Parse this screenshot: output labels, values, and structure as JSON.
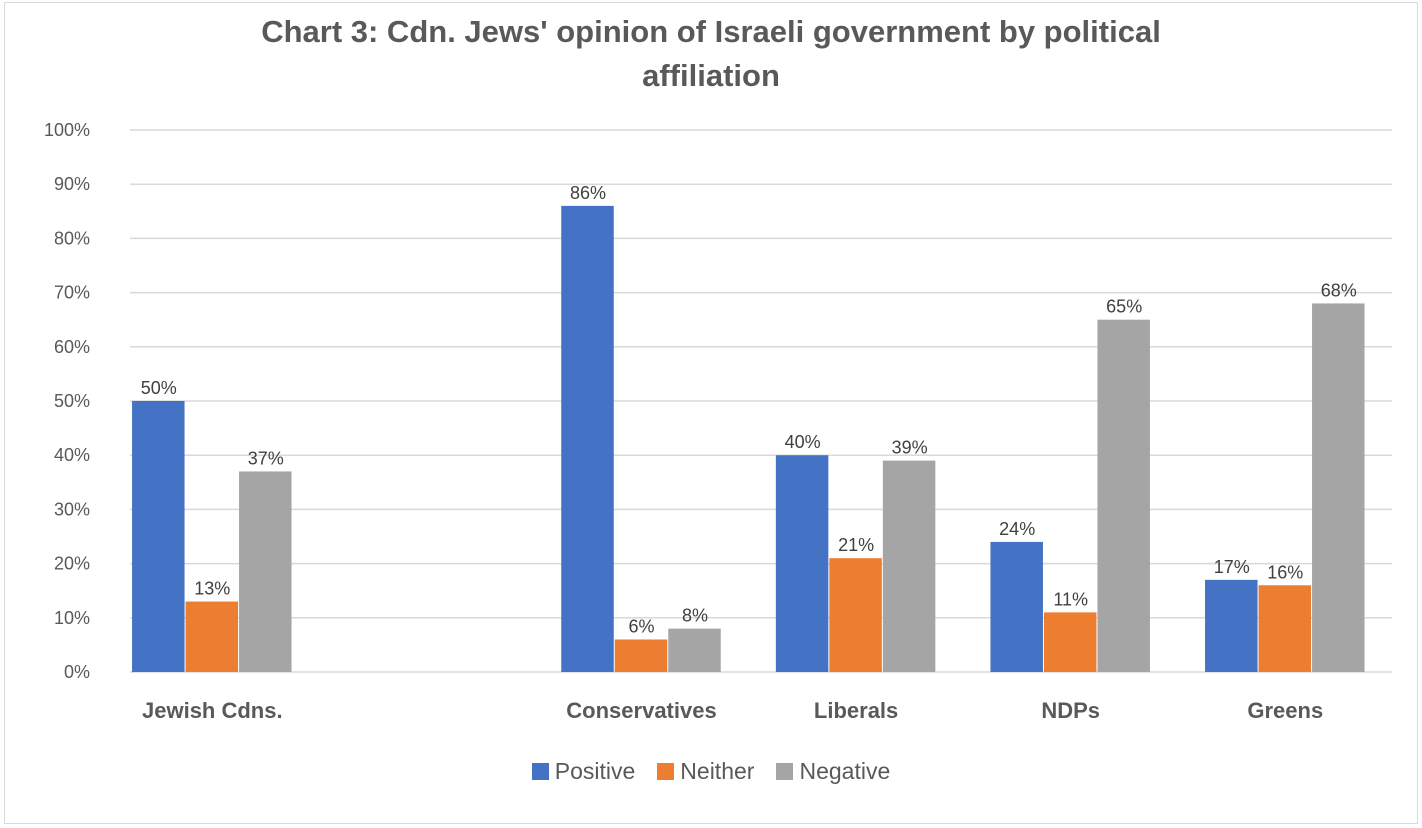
{
  "chart_data": {
    "type": "bar",
    "title": "Chart  3: Cdn. Jews' opinion of Israeli government by  political affiliation",
    "title_lines": [
      "Chart  3: Cdn. Jews' opinion of Israeli government by  political",
      "affiliation"
    ],
    "categories": [
      "Jewish Cdns.",
      "",
      "Conservatives",
      "Liberals",
      "NDPs",
      "Greens"
    ],
    "series": [
      {
        "name": "Positive",
        "color": "#4472c4",
        "values": [
          50,
          null,
          86,
          40,
          24,
          17
        ]
      },
      {
        "name": "Neither",
        "color": "#ed7d31",
        "values": [
          13,
          null,
          6,
          21,
          11,
          16
        ]
      },
      {
        "name": "Negative",
        "color": "#a5a5a5",
        "values": [
          37,
          null,
          8,
          39,
          65,
          68
        ]
      }
    ],
    "ylim": [
      0,
      100
    ],
    "yticks": [
      "0%",
      "10%",
      "20%",
      "30%",
      "40%",
      "50%",
      "60%",
      "70%",
      "80%",
      "90%",
      "100%"
    ],
    "value_suffix": "%",
    "grid": true,
    "legend": "bottom"
  }
}
